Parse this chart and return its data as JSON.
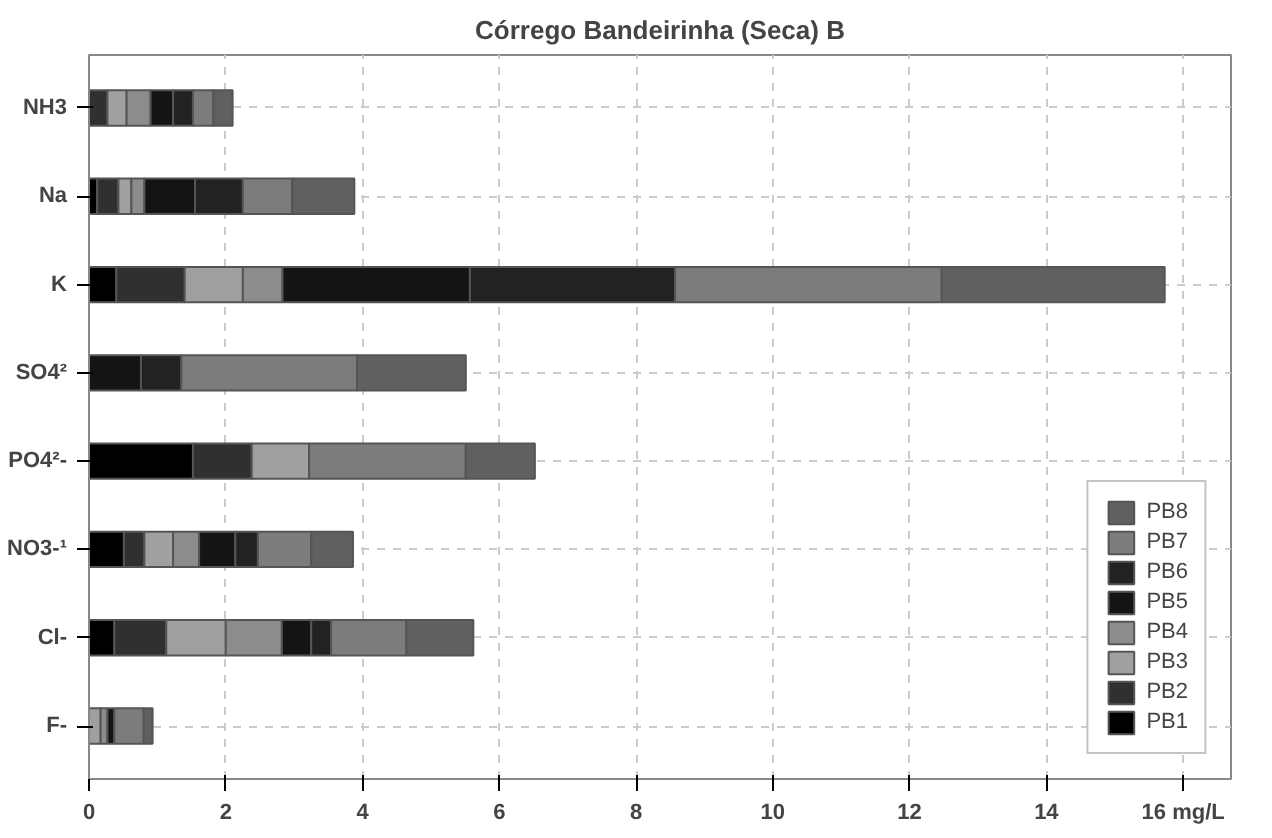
{
  "chart_data": {
    "type": "bar",
    "orientation": "horizontal",
    "stacked": true,
    "title": "Córrego Bandeirinha (Seca) B",
    "categories": [
      "NH3",
      "Na",
      "K",
      "SO4²",
      "PO4²-",
      "NO3-¹",
      "Cl-",
      "F-"
    ],
    "series": [
      {
        "name": "PB1",
        "color": "#000000",
        "values": [
          0,
          0.12,
          0.4,
          0,
          1.52,
          0.51,
          0.37,
          0
        ]
      },
      {
        "name": "PB2",
        "color": "#303030",
        "values": [
          0.27,
          0.31,
          1.0,
          0,
          0.86,
          0.3,
          0.76,
          0
        ]
      },
      {
        "name": "PB3",
        "color": "#a0a0a0",
        "values": [
          0.28,
          0.19,
          0.85,
          0,
          0.84,
          0.42,
          0.87,
          0.17
        ]
      },
      {
        "name": "PB4",
        "color": "#8c8c8c",
        "values": [
          0.35,
          0.19,
          0.58,
          0,
          0,
          0.38,
          0.82,
          0.1
        ]
      },
      {
        "name": "PB5",
        "color": "#141414",
        "values": [
          0.33,
          0.74,
          2.74,
          0.76,
          0,
          0.53,
          0.43,
          0.1
        ]
      },
      {
        "name": "PB6",
        "color": "#222222",
        "values": [
          0.29,
          0.7,
          3.0,
          0.59,
          0,
          0.33,
          0.29,
          0
        ]
      },
      {
        "name": "PB7",
        "color": "#7c7c7c",
        "values": [
          0.3,
          0.72,
          3.9,
          2.57,
          2.29,
          0.78,
          1.1,
          0.43
        ]
      },
      {
        "name": "PB8",
        "color": "#606060",
        "values": [
          0.28,
          0.91,
          3.26,
          1.59,
          1.01,
          0.61,
          0.98,
          0.13
        ]
      }
    ],
    "xlim": [
      0,
      16.7
    ],
    "xticks": [
      0,
      2,
      4,
      6,
      8,
      10,
      12,
      14,
      {
        "value": 16,
        "label": "16 mg/L"
      }
    ],
    "grid": true,
    "legend": "bottom right"
  }
}
